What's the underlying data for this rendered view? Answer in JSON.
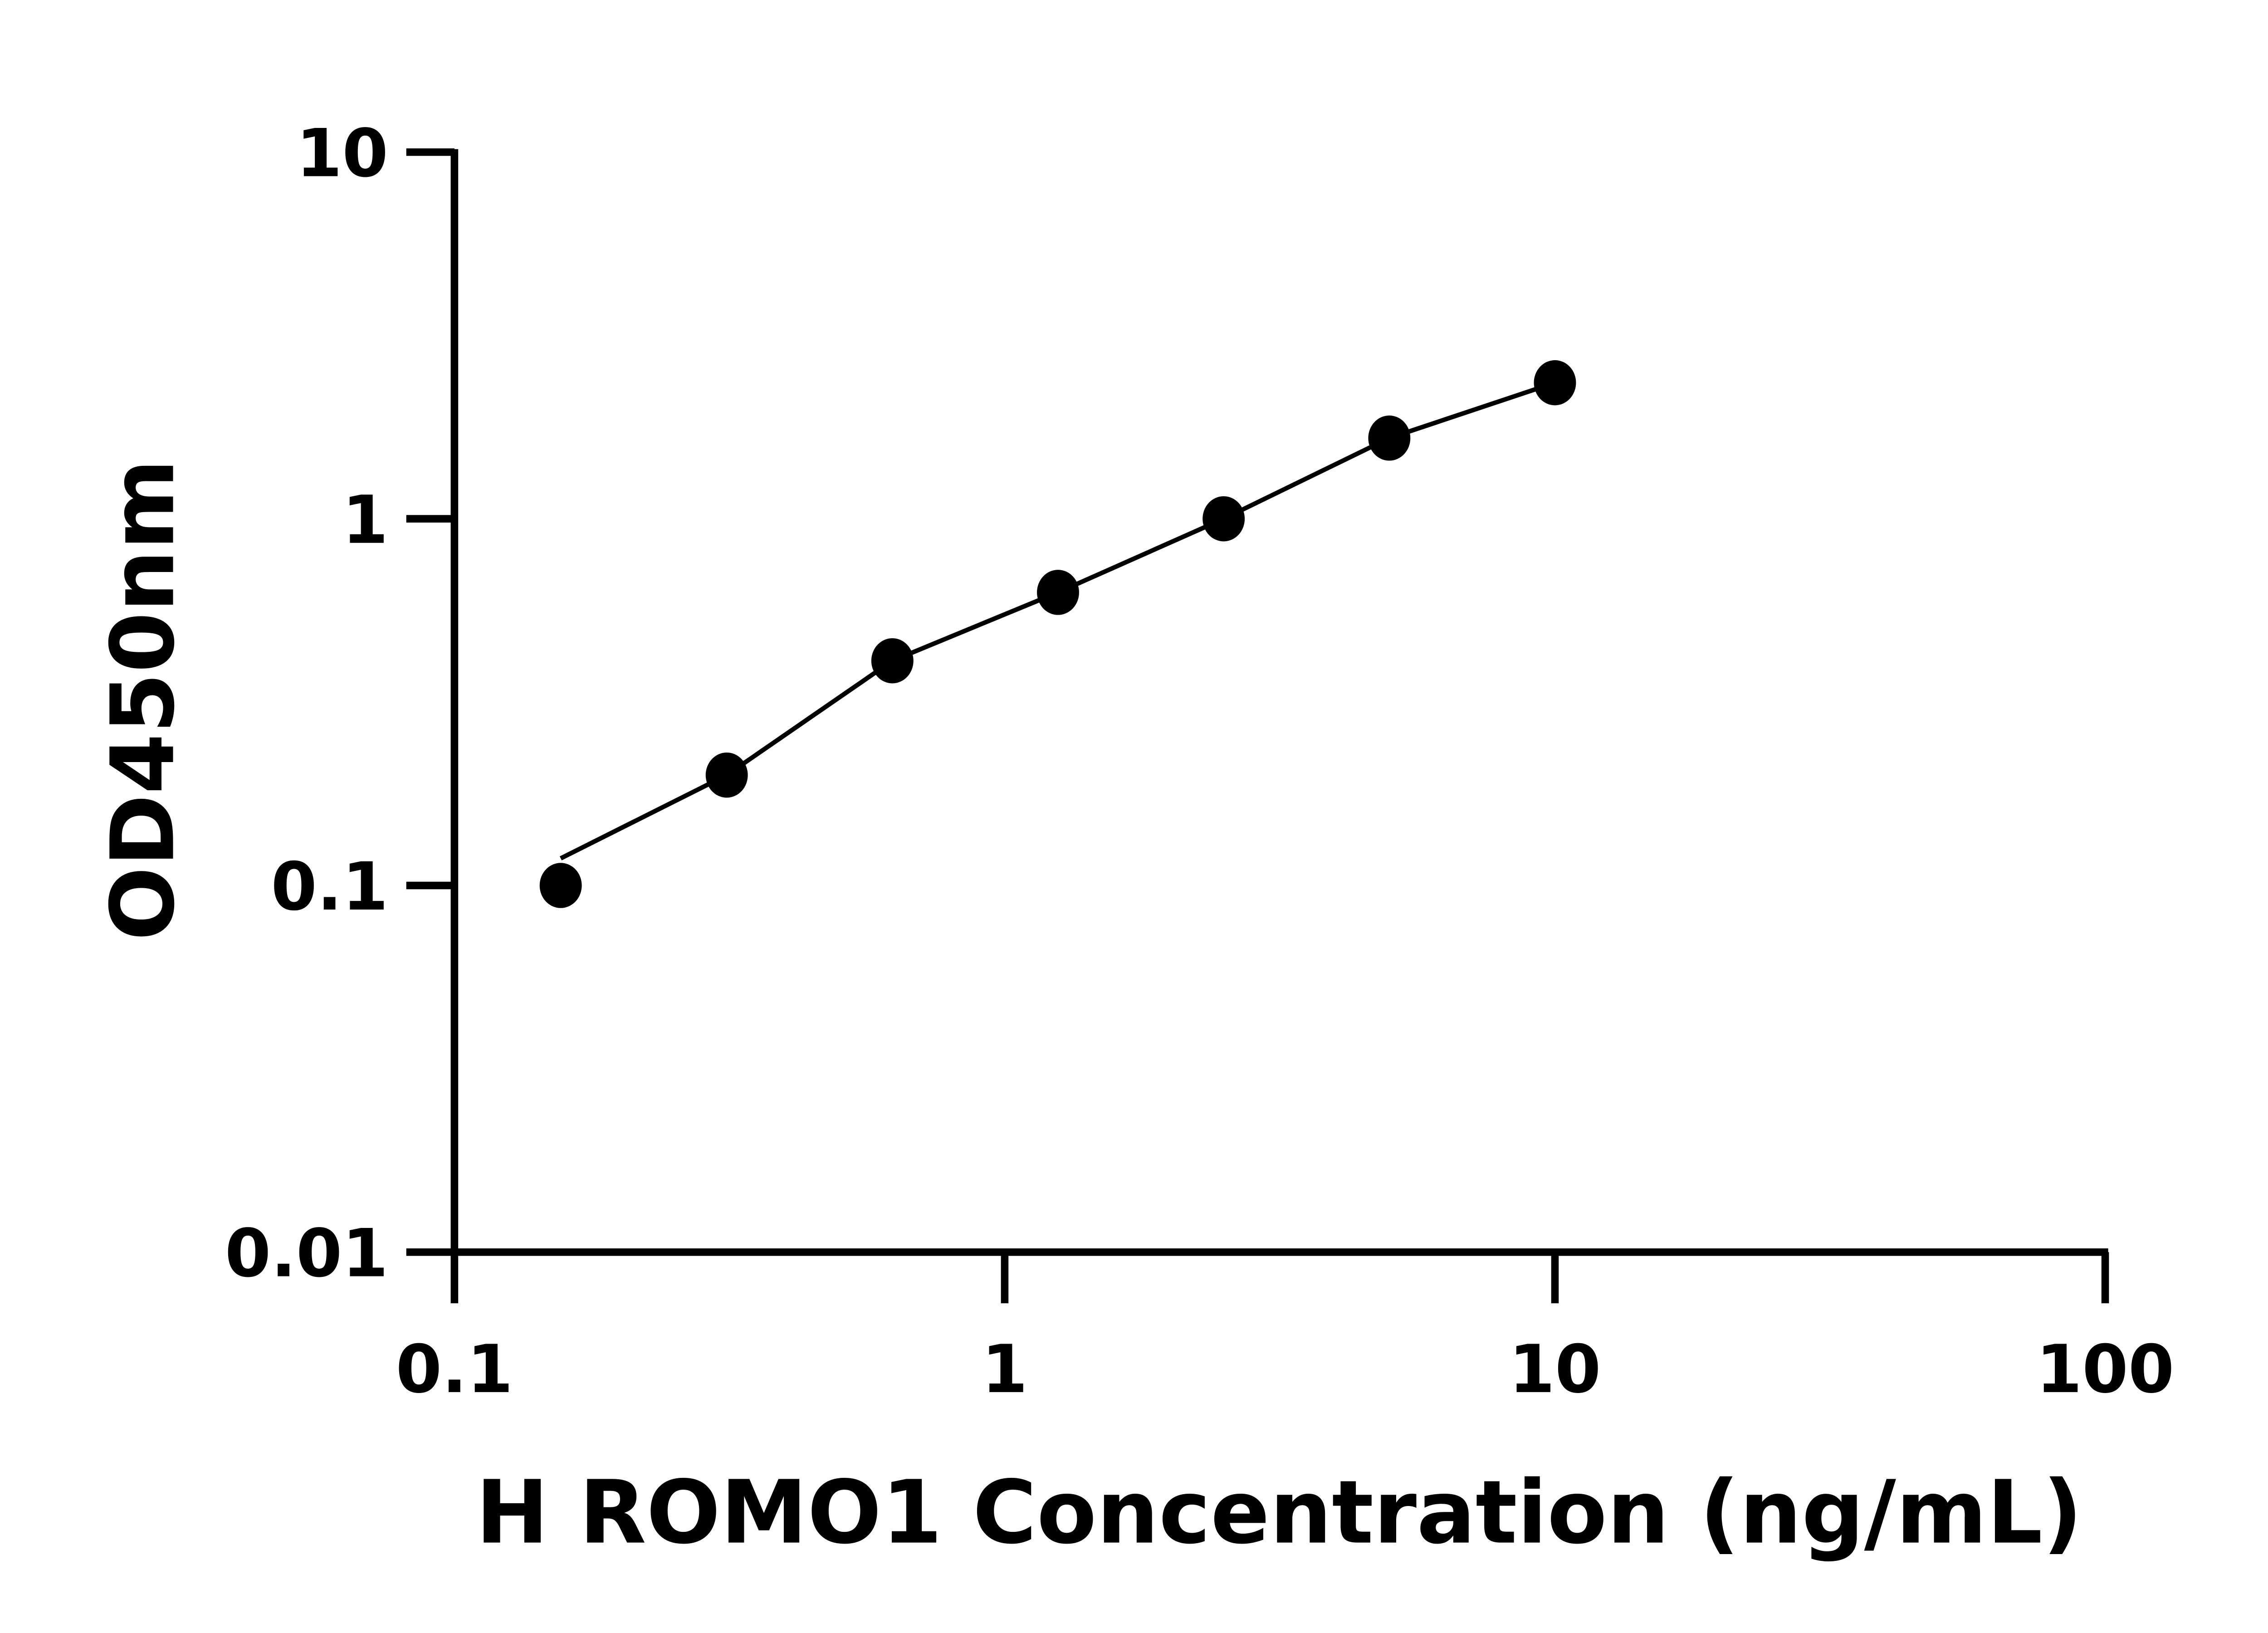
{
  "chart_data": {
    "type": "scatter",
    "title": "",
    "xlabel": "H ROMO1 Concentration (ng/mL)",
    "ylabel": "OD450nm",
    "x_scale": "log",
    "y_scale": "log",
    "xlim": [
      0.1,
      100
    ],
    "ylim": [
      0.01,
      10
    ],
    "x_ticks": [
      "0.1",
      "1",
      "10",
      "100"
    ],
    "y_ticks": [
      "0.01",
      "0.1",
      "1",
      "10"
    ],
    "grid": false,
    "marker_color": "#000000",
    "line_color": "#000000",
    "fit_line": true,
    "x": [
      0.156,
      0.3125,
      0.625,
      1.25,
      2.5,
      5,
      10
    ],
    "y": [
      0.1,
      0.2,
      0.41,
      0.63,
      1.0,
      1.66,
      2.35
    ]
  }
}
